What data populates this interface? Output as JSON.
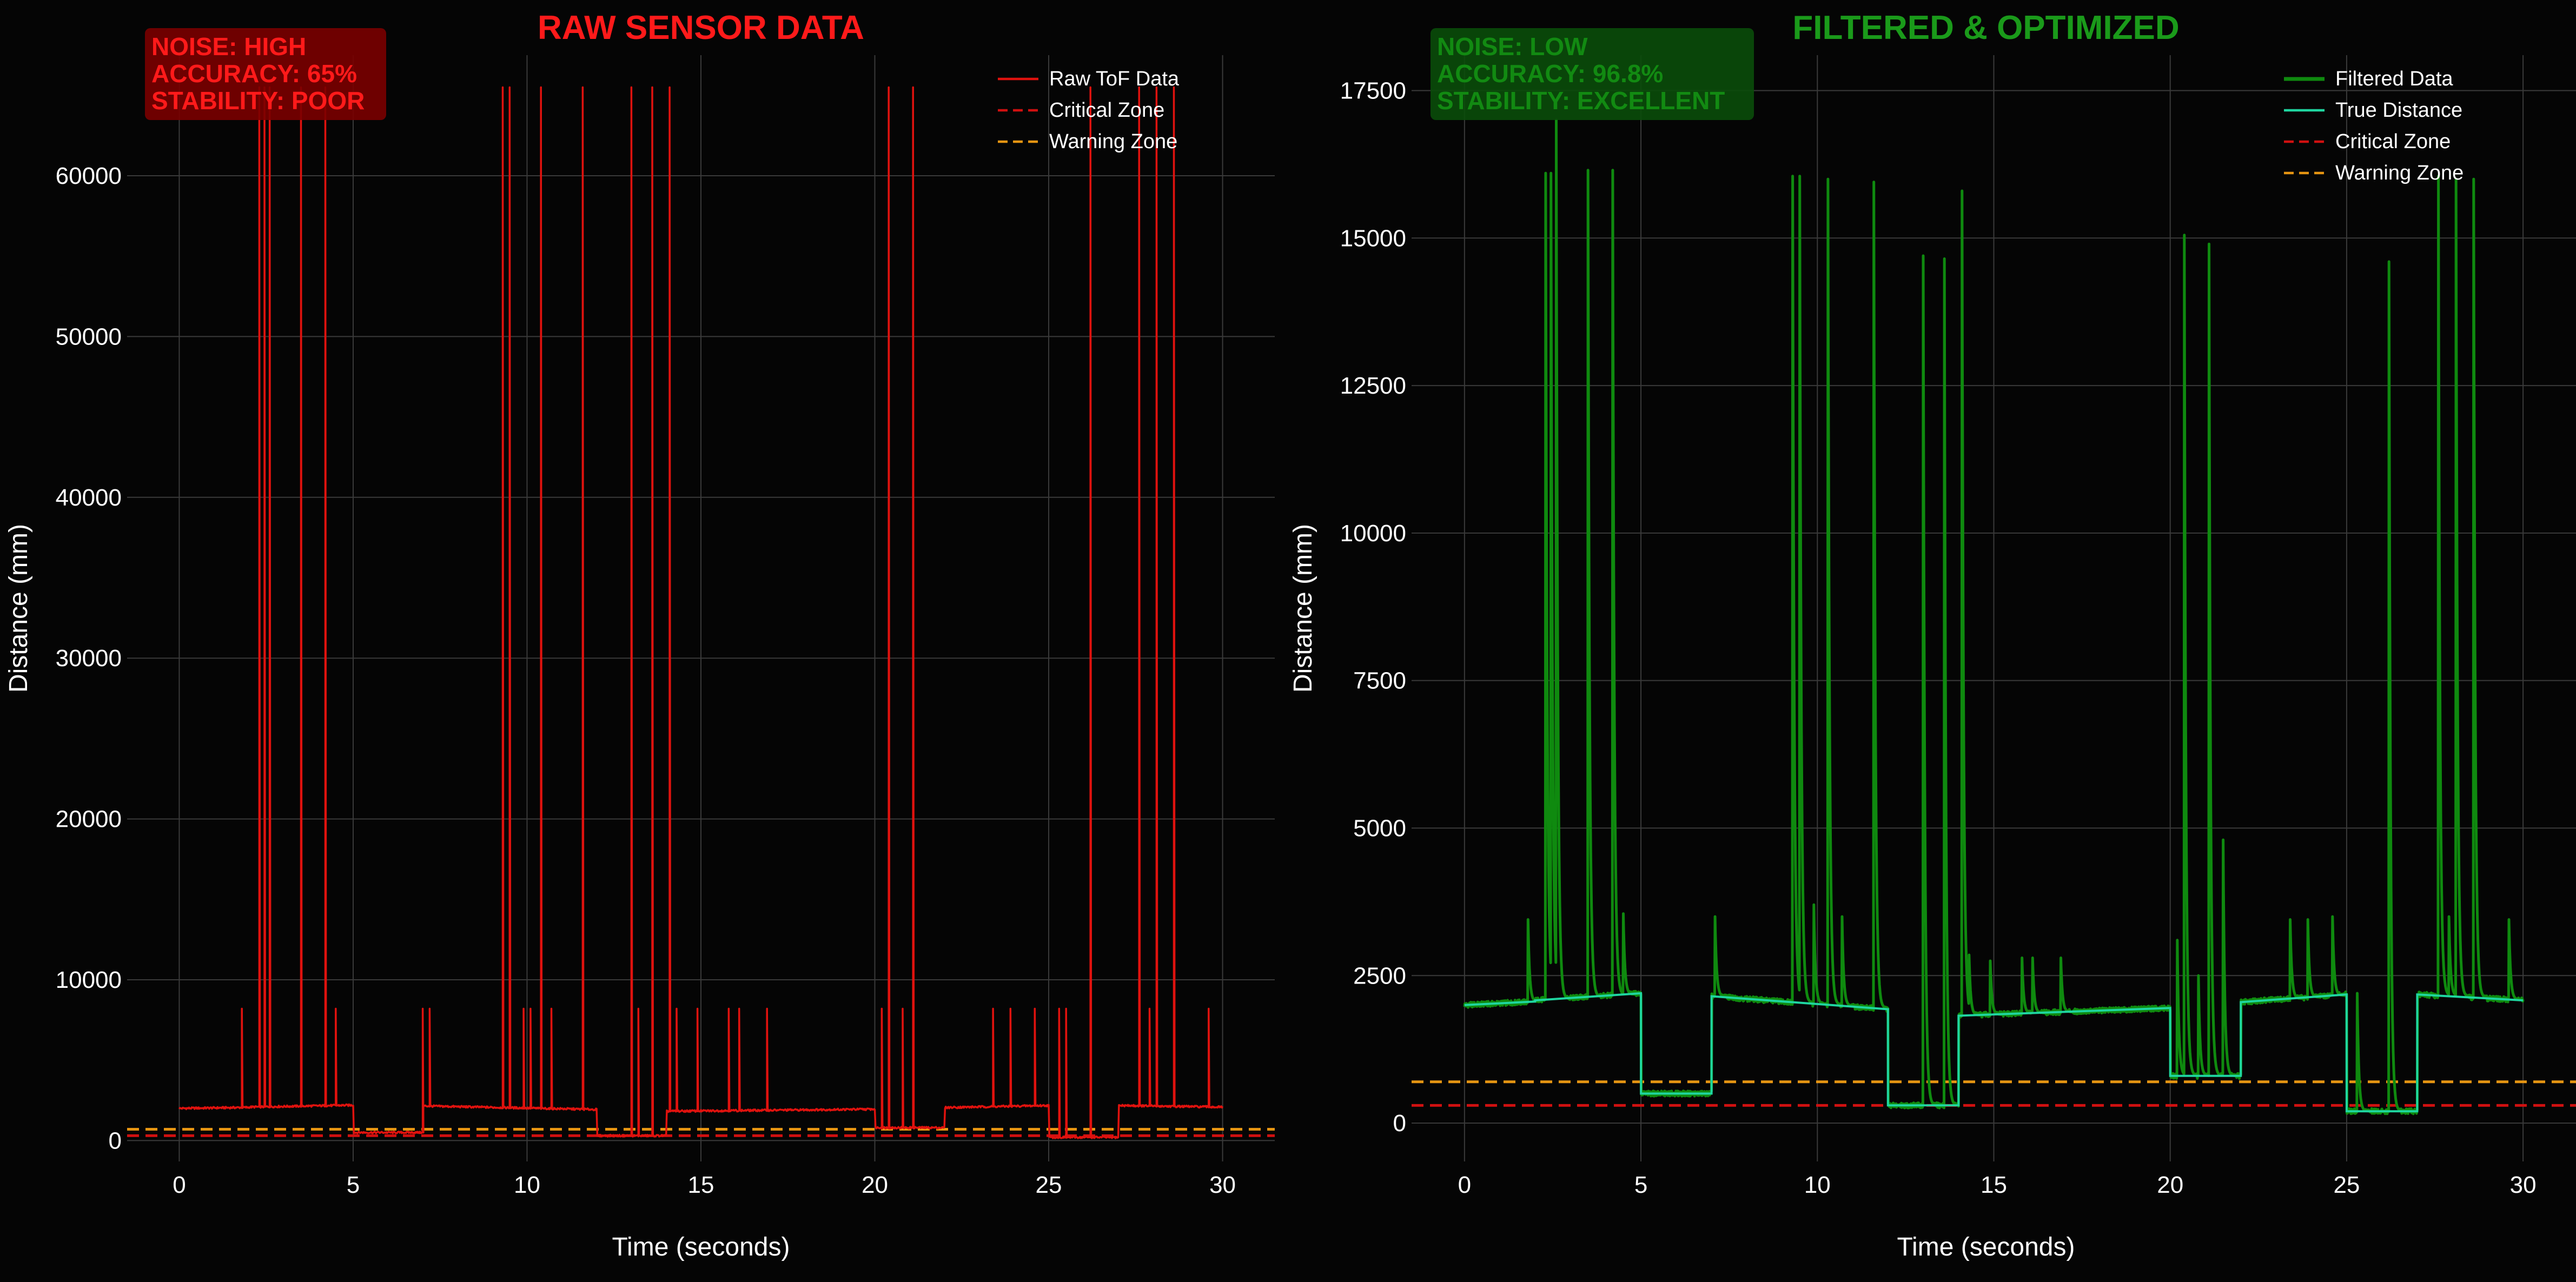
{
  "colors": {
    "background": "#050505",
    "grid": "#3a3a3a",
    "raw": "#e0120e",
    "filtered": "#0f8a0f",
    "true_distance": "#1fd6a0",
    "critical": "#d01010",
    "warning": "#e69512",
    "text": "#ffffff",
    "raw_title": "#ff1a1a",
    "filtered_title": "#1a9a1a"
  },
  "chart_data": [
    {
      "type": "line",
      "title": "RAW SENSOR DATA",
      "xlabel": "Time (seconds)",
      "ylabel": "Distance (mm)",
      "xlim": [
        -1.5,
        31.5
      ],
      "ylim": [
        -1300,
        67500
      ],
      "xticks": [
        0,
        5,
        10,
        15,
        20,
        25,
        30
      ],
      "yticks": [
        0,
        10000,
        20000,
        30000,
        40000,
        50000,
        60000
      ],
      "ytick_labels": [
        "0",
        "10000",
        "20000",
        "30000",
        "40000",
        "50000",
        "60000"
      ],
      "grid": true,
      "legend_position": "top-right",
      "stats_box": {
        "lines": [
          "NOISE: HIGH",
          "ACCURACY: 65%",
          "STABILITY: POOR"
        ],
        "bg": "#7a0000",
        "text_color": "#ff1a1a"
      },
      "baseline": [
        {
          "x0": 0,
          "x1": 2,
          "y0": 2000,
          "y1": 2060
        },
        {
          "x0": 2,
          "x1": 5,
          "y0": 2080,
          "y1": 2200
        },
        {
          "x0": 5,
          "x1": 7,
          "y0": 500,
          "y1": 500
        },
        {
          "x0": 7,
          "x1": 12,
          "y0": 2150,
          "y1": 1930
        },
        {
          "x0": 12,
          "x1": 14,
          "y0": 300,
          "y1": 300
        },
        {
          "x0": 14,
          "x1": 20,
          "y0": 1820,
          "y1": 1950
        },
        {
          "x0": 20,
          "x1": 22,
          "y0": 800,
          "y1": 800
        },
        {
          "x0": 22,
          "x1": 25,
          "y0": 2050,
          "y1": 2180
        },
        {
          "x0": 25,
          "x1": 27,
          "y0": 200,
          "y1": 200
        },
        {
          "x0": 27,
          "x1": 30,
          "y0": 2180,
          "y1": 2080
        }
      ],
      "spikes": [
        {
          "x": 1.8,
          "y": 8200
        },
        {
          "x": 2.3,
          "y": 65500
        },
        {
          "x": 2.45,
          "y": 65500
        },
        {
          "x": 2.6,
          "y": 65500
        },
        {
          "x": 3.5,
          "y": 65500
        },
        {
          "x": 4.2,
          "y": 65500
        },
        {
          "x": 4.5,
          "y": 8200
        },
        {
          "x": 7.0,
          "y": 8200
        },
        {
          "x": 7.2,
          "y": 8200
        },
        {
          "x": 9.3,
          "y": 65500
        },
        {
          "x": 9.5,
          "y": 65500
        },
        {
          "x": 9.9,
          "y": 8200
        },
        {
          "x": 10.1,
          "y": 8200
        },
        {
          "x": 10.4,
          "y": 65500
        },
        {
          "x": 10.7,
          "y": 8200
        },
        {
          "x": 11.6,
          "y": 65500
        },
        {
          "x": 13.0,
          "y": 65500
        },
        {
          "x": 13.2,
          "y": 8200
        },
        {
          "x": 13.6,
          "y": 65500
        },
        {
          "x": 14.1,
          "y": 65500
        },
        {
          "x": 14.3,
          "y": 8200
        },
        {
          "x": 14.9,
          "y": 8200
        },
        {
          "x": 15.8,
          "y": 8200
        },
        {
          "x": 16.1,
          "y": 8200
        },
        {
          "x": 16.9,
          "y": 8200
        },
        {
          "x": 20.2,
          "y": 8200
        },
        {
          "x": 20.4,
          "y": 65500
        },
        {
          "x": 20.8,
          "y": 8200
        },
        {
          "x": 21.1,
          "y": 65500
        },
        {
          "x": 23.4,
          "y": 8200
        },
        {
          "x": 23.9,
          "y": 8200
        },
        {
          "x": 24.6,
          "y": 8200
        },
        {
          "x": 25.3,
          "y": 8200
        },
        {
          "x": 25.5,
          "y": 8200
        },
        {
          "x": 26.2,
          "y": 65500
        },
        {
          "x": 27.6,
          "y": 65500
        },
        {
          "x": 27.9,
          "y": 8200
        },
        {
          "x": 28.1,
          "y": 65500
        },
        {
          "x": 28.6,
          "y": 65500
        },
        {
          "x": 29.6,
          "y": 8200
        }
      ],
      "series": [
        {
          "name": "Raw ToF Data",
          "kind": "raw",
          "style": "solid"
        },
        {
          "name": "Critical Zone",
          "kind": "hline",
          "y": 300,
          "style": "dashed"
        },
        {
          "name": "Warning Zone",
          "kind": "hline",
          "y": 700,
          "style": "dashed"
        }
      ]
    },
    {
      "type": "line",
      "title": "FILTERED & OPTIMIZED",
      "xlabel": "Time (seconds)",
      "ylabel": "Distance (mm)",
      "xlim": [
        -1.5,
        31.5
      ],
      "ylim": [
        -650,
        18100
      ],
      "xticks": [
        0,
        5,
        10,
        15,
        20,
        25,
        30
      ],
      "yticks": [
        0,
        2500,
        5000,
        7500,
        10000,
        12500,
        15000,
        17500
      ],
      "ytick_labels": [
        "0",
        "2500",
        "5000",
        "7500",
        "10000",
        "12500",
        "15000",
        "17500"
      ],
      "grid": true,
      "legend_position": "top-right",
      "stats_box": {
        "lines": [
          "NOISE: LOW",
          "ACCURACY: 96.8%",
          "STABILITY: EXCELLENT"
        ],
        "bg": "#0a4d0a",
        "text_color": "#128a12"
      },
      "baseline": [
        {
          "x0": 0,
          "x1": 2,
          "y0": 2000,
          "y1": 2060
        },
        {
          "x0": 2,
          "x1": 5,
          "y0": 2080,
          "y1": 2200
        },
        {
          "x0": 5,
          "x1": 7,
          "y0": 500,
          "y1": 500
        },
        {
          "x0": 7,
          "x1": 12,
          "y0": 2150,
          "y1": 1930
        },
        {
          "x0": 12,
          "x1": 14,
          "y0": 300,
          "y1": 300
        },
        {
          "x0": 14,
          "x1": 20,
          "y0": 1820,
          "y1": 1950
        },
        {
          "x0": 20,
          "x1": 22,
          "y0": 800,
          "y1": 800
        },
        {
          "x0": 22,
          "x1": 25,
          "y0": 2050,
          "y1": 2180
        },
        {
          "x0": 25,
          "x1": 27,
          "y0": 200,
          "y1": 200
        },
        {
          "x0": 27,
          "x1": 30,
          "y0": 2180,
          "y1": 2080
        }
      ],
      "spikes": [
        {
          "x": 1.8,
          "y": 3450
        },
        {
          "x": 2.3,
          "y": 16100
        },
        {
          "x": 2.45,
          "y": 16100
        },
        {
          "x": 2.6,
          "y": 17000
        },
        {
          "x": 3.5,
          "y": 16150
        },
        {
          "x": 4.2,
          "y": 16150
        },
        {
          "x": 4.5,
          "y": 3550
        },
        {
          "x": 7.1,
          "y": 3500
        },
        {
          "x": 9.3,
          "y": 16050
        },
        {
          "x": 9.5,
          "y": 16050
        },
        {
          "x": 9.9,
          "y": 3700
        },
        {
          "x": 10.3,
          "y": 16000
        },
        {
          "x": 10.7,
          "y": 3500
        },
        {
          "x": 11.6,
          "y": 15950
        },
        {
          "x": 13.0,
          "y": 14700
        },
        {
          "x": 13.6,
          "y": 14650
        },
        {
          "x": 14.1,
          "y": 15800
        },
        {
          "x": 14.3,
          "y": 2850
        },
        {
          "x": 14.9,
          "y": 2750
        },
        {
          "x": 15.8,
          "y": 2800
        },
        {
          "x": 16.1,
          "y": 2800
        },
        {
          "x": 16.9,
          "y": 2800
        },
        {
          "x": 20.2,
          "y": 3100
        },
        {
          "x": 20.4,
          "y": 15050
        },
        {
          "x": 20.8,
          "y": 2500
        },
        {
          "x": 21.1,
          "y": 14900
        },
        {
          "x": 21.5,
          "y": 4800
        },
        {
          "x": 23.4,
          "y": 3450
        },
        {
          "x": 23.9,
          "y": 3450
        },
        {
          "x": 24.6,
          "y": 3500
        },
        {
          "x": 25.3,
          "y": 2200
        },
        {
          "x": 26.2,
          "y": 14600
        },
        {
          "x": 27.6,
          "y": 16050
        },
        {
          "x": 27.9,
          "y": 3500
        },
        {
          "x": 28.1,
          "y": 16000
        },
        {
          "x": 28.6,
          "y": 16000
        },
        {
          "x": 29.6,
          "y": 3450
        }
      ],
      "series": [
        {
          "name": "Filtered Data",
          "kind": "filtered",
          "style": "solid"
        },
        {
          "name": "True Distance",
          "kind": "truth",
          "style": "solid"
        },
        {
          "name": "Critical Zone",
          "kind": "hline",
          "y": 300,
          "style": "dashed"
        },
        {
          "name": "Warning Zone",
          "kind": "hline",
          "y": 700,
          "style": "dashed"
        }
      ]
    }
  ]
}
